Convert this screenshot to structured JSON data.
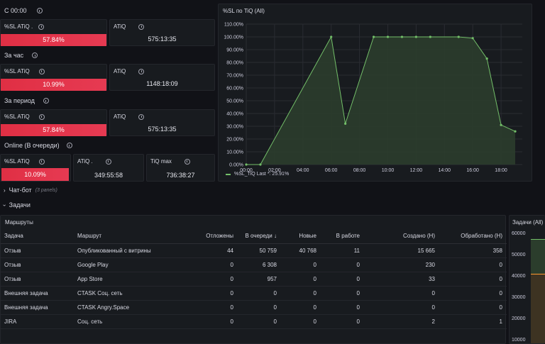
{
  "sections": {
    "s1": "С 00:00",
    "s2": "За час",
    "s3": "За период",
    "s4": "Online (В очереди)"
  },
  "stats": {
    "r1_sl_title": "%SL ATiQ .",
    "r1_sl_value": "57.84%",
    "r1_atiq_title": "ATiQ",
    "r1_atiq_value": "575:13:35",
    "r2_sl_title": "%SL ATiQ",
    "r2_sl_value": "10.99%",
    "r2_atiq_title": "ATiQ",
    "r2_atiq_value": "1148:18:09",
    "r3_sl_title": "%SL ATiQ",
    "r3_sl_value": "57.84%",
    "r3_atiq_title": "ATiQ",
    "r3_atiq_value": "575:13:35",
    "r4_sl_title": "%SL ATiQ",
    "r4_sl_value": "10.09%",
    "r4_atiq_title": "ATiQ .",
    "r4_atiq_value": "349:55:58",
    "r4_max_title": "TiQ max",
    "r4_max_value": "736:38:27"
  },
  "colors": {
    "red": "#e02f44",
    "green_line": "#73bf69",
    "green_fill": "#2b3d2c",
    "panel_bg": "#181b1f"
  },
  "chart_data": {
    "type": "area",
    "title": "%SL по TiQ (All)",
    "x": [
      "00:00",
      "01:00",
      "06:00",
      "07:00",
      "09:00",
      "10:00",
      "11:00",
      "12:00",
      "13:00",
      "15:00",
      "16:00",
      "17:00",
      "18:00",
      "19:00"
    ],
    "series": [
      {
        "name": "%SL_TiQ",
        "values": [
          0,
          0,
          100,
          32,
          100,
          100,
          100,
          100,
          100,
          100,
          99,
          83,
          31,
          26
        ]
      }
    ],
    "x_ticks": [
      "00:00",
      "02:00",
      "04:00",
      "06:00",
      "08:00",
      "10:00",
      "12:00",
      "14:00",
      "16:00",
      "18:00"
    ],
    "y_ticks": [
      "0.00%",
      "10.00%",
      "20.00%",
      "30.00%",
      "40.00%",
      "50.00%",
      "60.00%",
      "70.00%",
      "80.00%",
      "90.00%",
      "100.00%",
      "110.00%"
    ],
    "ylim": [
      0,
      110
    ],
    "legend_text": "%SL_TiQ   Last *: 25.91%"
  },
  "rows": {
    "chatbot_label": "Чат-бот",
    "chatbot_sub": "(3 panels)",
    "tasks_label": "Задачи"
  },
  "routes": {
    "title": "Маршруты",
    "columns": [
      "Задача",
      "Маршрут",
      "Отложены",
      "В очереди ↓",
      "Новые",
      "В работе",
      "Создано (Н)",
      "Обработано (Н)"
    ],
    "rows": [
      [
        "Отзыв",
        "Опубликованный с витрины",
        "44",
        "50 759",
        "40 768",
        "11",
        "15 665",
        "358"
      ],
      [
        "Отзыв",
        "Google Play",
        "0",
        "6 308",
        "0",
        "0",
        "230",
        "0"
      ],
      [
        "Отзыв",
        "App Store",
        "0",
        "957",
        "0",
        "0",
        "33",
        "0"
      ],
      [
        "Внешняя задача",
        "CTASK Соц. сеть",
        "0",
        "0",
        "0",
        "0",
        "0",
        "0"
      ],
      [
        "Внешняя задача",
        "CTASK Angry.Space",
        "0",
        "0",
        "0",
        "0",
        "0",
        "0"
      ],
      [
        "JIRA",
        "Соц. сеть",
        "0",
        "0",
        "0",
        "0",
        "2",
        "1"
      ]
    ]
  },
  "tasks_panel": {
    "title": "Задачи (All)",
    "y_ticks": [
      "60000",
      "50000",
      "40000",
      "30000",
      "20000",
      "10000"
    ]
  }
}
